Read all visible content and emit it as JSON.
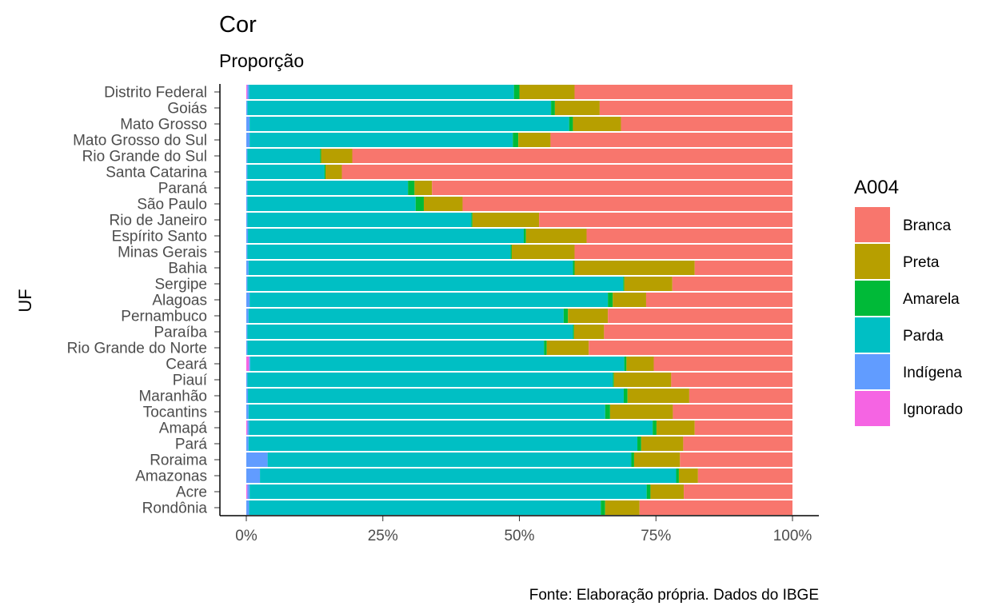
{
  "chart_data": {
    "type": "bar",
    "orientation": "horizontal",
    "stacked": true,
    "title": "Cor",
    "subtitle": "Proporção",
    "ylabel": "UF",
    "xlabel": "",
    "xlim": [
      0,
      1
    ],
    "x_ticks": [
      "0%",
      "25%",
      "50%",
      "75%",
      "100%"
    ],
    "caption": "Fonte: Elaboração própria. Dados do IBGE",
    "legend": {
      "title": "A004",
      "position": "right"
    },
    "categories": [
      "Distrito Federal",
      "Goiás",
      "Mato Grosso",
      "Mato Grosso do Sul",
      "Rio Grande do Sul",
      "Santa Catarina",
      "Paraná",
      "São Paulo",
      "Rio de Janeiro",
      "Espírito Santo",
      "Minas Gerais",
      "Bahia",
      "Sergipe",
      "Alagoas",
      "Pernambuco",
      "Paraíba",
      "Rio Grande do Norte",
      "Ceará",
      "Piauí",
      "Maranhão",
      "Tocantins",
      "Amapá",
      "Pará",
      "Roraima",
      "Amazonas",
      "Acre",
      "Rondônia"
    ],
    "series": [
      {
        "name": "Ignorado",
        "color": "#F564E3",
        "values": [
          0.002,
          0.0,
          0.0,
          0.0,
          0.0,
          0.0,
          0.0,
          0.0,
          0.0,
          0.0,
          0.0,
          0.0,
          0.0,
          0.0,
          0.0,
          0.0,
          0.0,
          0.005,
          0.0,
          0.0,
          0.0,
          0.002,
          0.0,
          0.0,
          0.0,
          0.002,
          0.0
        ]
      },
      {
        "name": "Indígena",
        "color": "#619CFF",
        "values": [
          0.003,
          0.002,
          0.006,
          0.006,
          0.002,
          0.002,
          0.002,
          0.002,
          0.002,
          0.003,
          0.002,
          0.004,
          0.002,
          0.006,
          0.004,
          0.002,
          0.002,
          0.002,
          0.002,
          0.003,
          0.004,
          0.003,
          0.004,
          0.039,
          0.025,
          0.004,
          0.005
        ]
      },
      {
        "name": "Parda",
        "color": "#00BFC4",
        "values": [
          0.485,
          0.556,
          0.585,
          0.482,
          0.133,
          0.141,
          0.294,
          0.308,
          0.41,
          0.505,
          0.482,
          0.594,
          0.688,
          0.656,
          0.577,
          0.596,
          0.543,
          0.685,
          0.669,
          0.688,
          0.653,
          0.739,
          0.712,
          0.666,
          0.762,
          0.727,
          0.644
        ]
      },
      {
        "name": "Amarela",
        "color": "#00BA38",
        "values": [
          0.01,
          0.007,
          0.007,
          0.01,
          0.002,
          0.002,
          0.012,
          0.015,
          0.002,
          0.004,
          0.002,
          0.003,
          0.002,
          0.009,
          0.008,
          0.002,
          0.005,
          0.004,
          0.002,
          0.007,
          0.009,
          0.007,
          0.007,
          0.005,
          0.005,
          0.007,
          0.008
        ]
      },
      {
        "name": "Preta",
        "color": "#B79F00",
        "values": [
          0.101,
          0.082,
          0.088,
          0.059,
          0.057,
          0.03,
          0.032,
          0.071,
          0.122,
          0.111,
          0.115,
          0.22,
          0.088,
          0.061,
          0.073,
          0.055,
          0.077,
          0.05,
          0.105,
          0.113,
          0.115,
          0.07,
          0.077,
          0.084,
          0.035,
          0.061,
          0.063
        ]
      },
      {
        "name": "Branca",
        "color": "#F8766D",
        "values": [
          0.399,
          0.353,
          0.314,
          0.443,
          0.806,
          0.825,
          0.66,
          0.604,
          0.464,
          0.377,
          0.399,
          0.179,
          0.22,
          0.268,
          0.338,
          0.345,
          0.373,
          0.254,
          0.222,
          0.189,
          0.219,
          0.179,
          0.2,
          0.206,
          0.173,
          0.199,
          0.28
        ]
      }
    ],
    "legend_order": [
      "Branca",
      "Preta",
      "Amarela",
      "Parda",
      "Indígena",
      "Ignorado"
    ]
  }
}
